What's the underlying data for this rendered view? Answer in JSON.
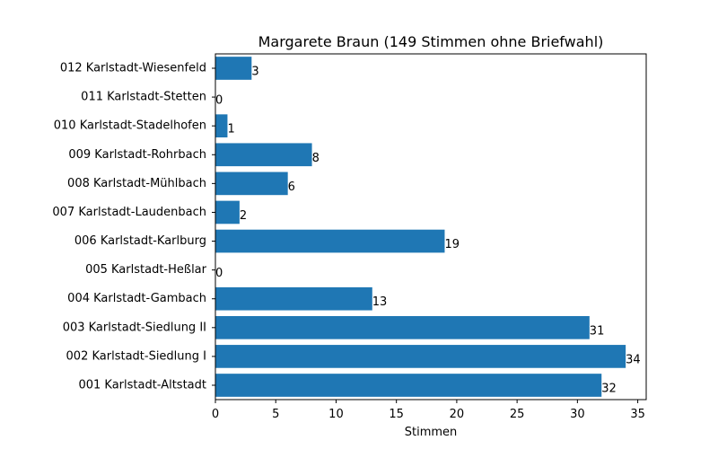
{
  "chart_data": {
    "type": "bar",
    "orientation": "horizontal",
    "title": "Margarete Braun (149 Stimmen ohne Briefwahl)",
    "xlabel": "Stimmen",
    "ylabel": "",
    "xlim": [
      0,
      35.7
    ],
    "xticks": [
      0,
      5,
      10,
      15,
      20,
      25,
      30,
      35
    ],
    "grid": false,
    "bar_color": "#1f77b4",
    "categories": [
      "001 Karlstadt-Altstadt",
      "002 Karlstadt-Siedlung I",
      "003 Karlstadt-Siedlung II",
      "004 Karlstadt-Gambach",
      "005 Karlstadt-Heßlar",
      "006 Karlstadt-Karlburg",
      "007 Karlstadt-Laudenbach",
      "008 Karlstadt-Mühlbach",
      "009 Karlstadt-Rohrbach",
      "010 Karlstadt-Stadelhofen",
      "011 Karlstadt-Stetten",
      "012 Karlstadt-Wiesenfeld"
    ],
    "values": [
      32,
      34,
      31,
      13,
      0,
      19,
      2,
      6,
      8,
      1,
      0,
      3
    ]
  }
}
